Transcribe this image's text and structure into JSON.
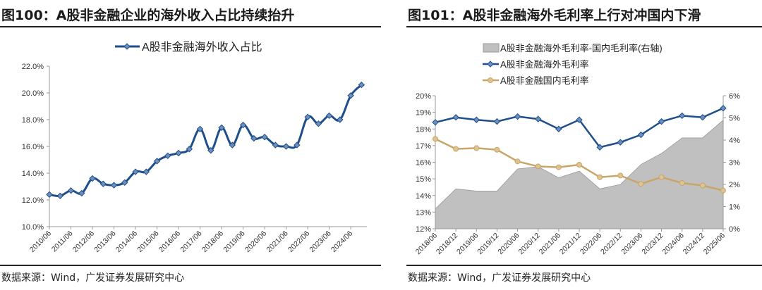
{
  "chart_data": [
    {
      "type": "line",
      "title": "图100：A股非金融企业的海外收入占比持续抬升",
      "source": "数据来源：Wind，广发证券发展研究中心",
      "legend_position": "top",
      "x_tick_labels": [
        "2010/06",
        "2011/06",
        "2012/06",
        "2013/06",
        "2014/06",
        "2015/06",
        "2016/06",
        "2017/06",
        "2018/06",
        "2019/06",
        "2020/06",
        "2021/06",
        "2022/06",
        "2023/06",
        "2024/06"
      ],
      "y_tick_labels": [
        "10.0%",
        "12.0%",
        "14.0%",
        "16.0%",
        "18.0%",
        "20.0%",
        "22.0%"
      ],
      "ylim": [
        10,
        22
      ],
      "x": [
        "2010/06",
        "2010/12",
        "2011/06",
        "2011/12",
        "2012/06",
        "2012/12",
        "2013/06",
        "2013/12",
        "2014/06",
        "2014/12",
        "2015/06",
        "2015/12",
        "2016/06",
        "2016/12",
        "2017/06",
        "2017/12",
        "2018/06",
        "2018/12",
        "2019/06",
        "2019/12",
        "2020/06",
        "2020/12",
        "2021/06",
        "2021/12",
        "2022/06",
        "2022/12",
        "2023/06",
        "2023/12",
        "2024/06",
        "2024/12"
      ],
      "series": [
        {
          "name": "A股非金融海外收入占比",
          "color": "#1f4e8c",
          "values": [
            12.4,
            12.3,
            12.7,
            12.5,
            13.6,
            13.2,
            13.1,
            13.3,
            14.1,
            14.1,
            14.9,
            15.3,
            15.5,
            15.8,
            17.3,
            15.7,
            17.4,
            16.1,
            17.6,
            16.6,
            16.7,
            16.1,
            16.0,
            16.1,
            18.2,
            17.7,
            18.3,
            18.0,
            19.8,
            20.6
          ]
        }
      ]
    },
    {
      "type": "line",
      "title": "图101：A股非金融海外毛利率上行对冲国内下滑",
      "source": "数据来源：Wind，广发证券发展研究中心",
      "legend_position": "top",
      "x": [
        "2018/06",
        "2018/12",
        "2019/06",
        "2019/12",
        "2020/06",
        "2020/12",
        "2021/06",
        "2021/12",
        "2022/06",
        "2022/12",
        "2023/06",
        "2023/12",
        "2024/06",
        "2024/12",
        "2025/06"
      ],
      "y_tick_labels": [
        "12%",
        "13%",
        "14%",
        "15%",
        "16%",
        "17%",
        "18%",
        "19%",
        "20%"
      ],
      "y2_tick_labels": [
        "0%",
        "1%",
        "2%",
        "3%",
        "4%",
        "5%",
        "6%"
      ],
      "ylim": [
        12,
        20
      ],
      "y2lim": [
        0,
        6
      ],
      "series": [
        {
          "name": "A股非金融海外毛利率-国内毛利率(右轴)",
          "type": "area",
          "axis": "right",
          "color": "#c0c0c0",
          "values": [
            0.9,
            1.8,
            1.7,
            1.7,
            2.7,
            2.8,
            2.3,
            2.6,
            1.8,
            2.0,
            2.9,
            3.4,
            4.1,
            4.1,
            4.9
          ]
        },
        {
          "name": "A股非金融海外毛利率",
          "type": "line",
          "axis": "left",
          "color": "#1f4e8c",
          "values": [
            18.4,
            18.7,
            18.55,
            18.45,
            18.75,
            18.6,
            18.0,
            18.55,
            16.9,
            17.2,
            17.65,
            18.45,
            18.8,
            18.7,
            19.25
          ]
        },
        {
          "name": "A股非金融国内毛利率",
          "type": "line",
          "axis": "left",
          "color": "#c8a66a",
          "values": [
            17.4,
            16.8,
            16.85,
            16.75,
            16.05,
            15.75,
            15.7,
            15.85,
            15.1,
            15.2,
            14.7,
            15.1,
            14.75,
            14.6,
            14.3
          ]
        }
      ]
    }
  ]
}
